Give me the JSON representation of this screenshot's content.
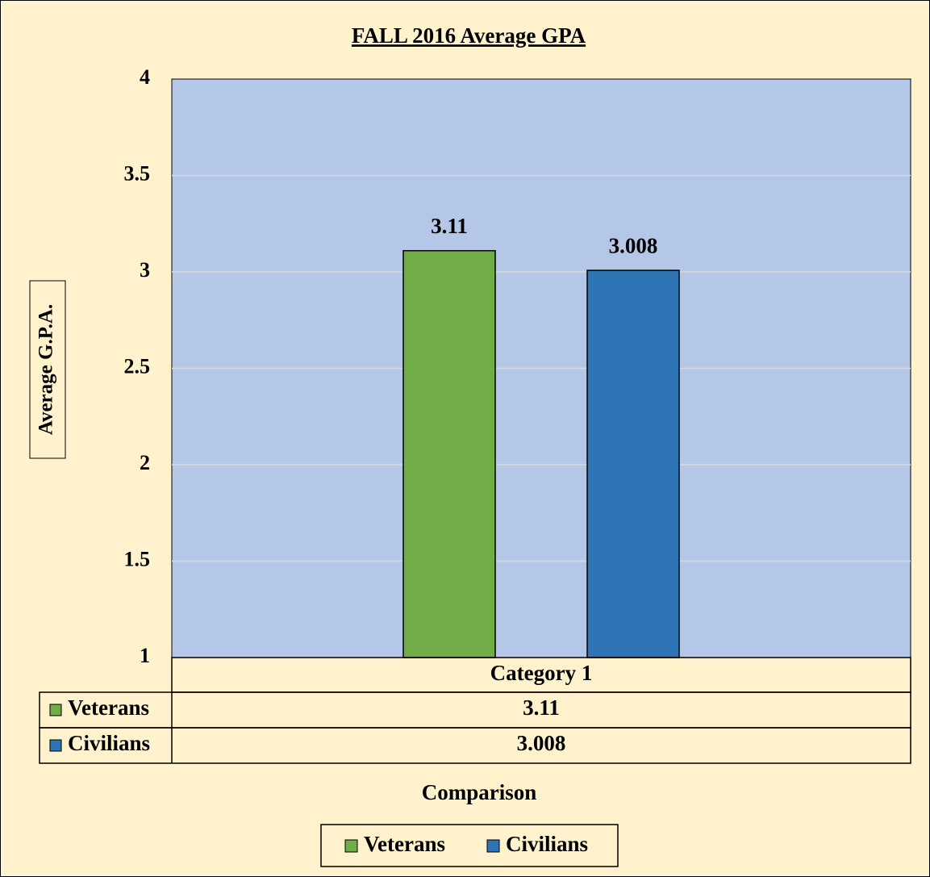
{
  "chart_data": {
    "type": "bar",
    "title": "FALL 2016 Average GPA",
    "y_label": "Average G.P.A.",
    "x_label": "Comparison",
    "categories": [
      "Category 1"
    ],
    "series": [
      {
        "name": "Veterans",
        "color": "#70ad47",
        "values": [
          3.11
        ]
      },
      {
        "name": "Civilians",
        "color": "#2e75b6",
        "values": [
          3.008
        ]
      }
    ],
    "ylim": [
      1,
      4
    ],
    "yticks": [
      1,
      1.5,
      2,
      2.5,
      3,
      3.5,
      4
    ],
    "grid": true,
    "legend": "bottom",
    "data_table": true
  }
}
